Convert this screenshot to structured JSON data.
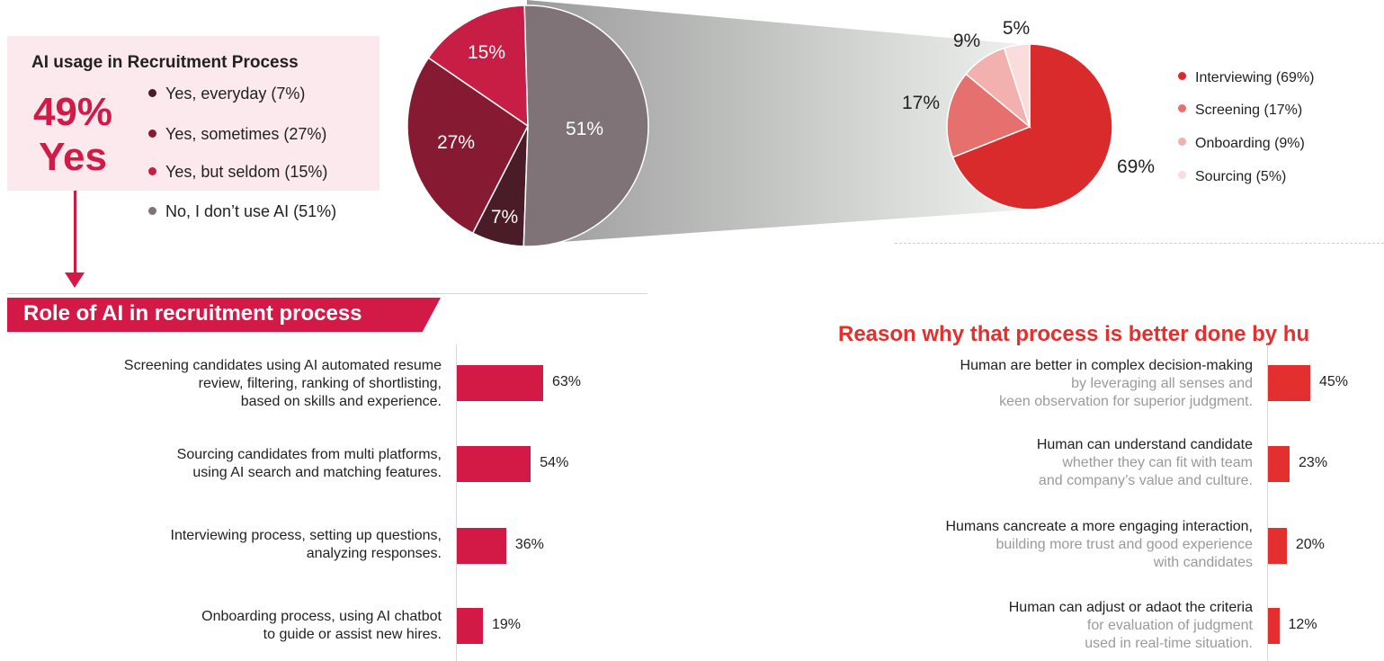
{
  "summary": {
    "title": "AI usage in Recruitment Process",
    "pct": "49%",
    "yes": "Yes",
    "legend": [
      {
        "label": "Yes, everyday (7%)",
        "color": "#4a1c28"
      },
      {
        "label": "Yes, sometimes (27%)",
        "color": "#861a32"
      },
      {
        "label": "Yes, but seldom (15%)",
        "color": "#c81e45"
      },
      {
        "label": "No, I don’t use AI (51%)",
        "color": "#7f7377"
      }
    ]
  },
  "role_title": "Role of AI in recruitment process",
  "reason_title": "Reason why that process is better done by hu",
  "colors": {
    "accent": "#d31a47",
    "reason_accent": "#e42f2f",
    "box_bg": "#fbe9ee"
  },
  "chart_data": [
    {
      "type": "pie",
      "labels": [
        "Yes, everyday",
        "Yes, sometimes",
        "Yes, but seldom",
        "No, I don’t use AI"
      ],
      "values": [
        7,
        27,
        15,
        51
      ],
      "value_labels": [
        "7%",
        "27%",
        "15%",
        "51%"
      ],
      "colors": [
        "#4a1c28",
        "#861a32",
        "#c81e45",
        "#7f7377"
      ]
    },
    {
      "type": "pie",
      "labels": [
        "Interviewing (69%)",
        "Screening (17%)",
        "Onboarding (9%)",
        "Sourcing (5%)"
      ],
      "values": [
        69,
        17,
        9,
        5
      ],
      "value_labels": [
        "69%",
        "17%",
        "9%",
        "5%"
      ],
      "colors": [
        "#d92b2b",
        "#e5706d",
        "#f2b1ae",
        "#f9dcdb"
      ],
      "legend_placement": "right"
    },
    {
      "type": "bar",
      "orientation": "horizontal",
      "title": "Role of AI in recruitment process",
      "categories": [
        "Screening candidates using AI automated resume review, filtering, ranking of shortlisting, based on skills and experience.",
        "Sourcing candidates from multi platforms, using AI search and matching features.",
        "Interviewing process, setting up questions, analyzing responses.",
        "Onboarding process, using AI chatbot to guide or assist new hires."
      ],
      "category_lines": [
        [
          "Screening candidates using AI automated resume",
          "review, filtering, ranking of shortlisting,",
          "based on skills and experience."
        ],
        [
          "Sourcing candidates from multi platforms,",
          "using AI search and matching features."
        ],
        [
          "Interviewing process, setting up questions,",
          "analyzing responses."
        ],
        [
          "Onboarding process, using AI chatbot",
          "to guide or assist new hires."
        ]
      ],
      "values": [
        63,
        54,
        36,
        19
      ],
      "value_labels": [
        "63%",
        "54%",
        "36%",
        "19%"
      ],
      "color": "#d31a47"
    },
    {
      "type": "bar",
      "orientation": "horizontal",
      "title": "Reason why that process is better done by hu",
      "categories": [
        "Human are better in complex decision-making by leveraging all senses and keen observation for superior judgment.",
        "Human can understand candidate whether they can fit with team and company’s value and culture.",
        "Humans cancreate a more engaging interaction, building more trust and good experience with candidates",
        "Human can adjust or adaot the criteria for evaluation of judgment used in real-time situation."
      ],
      "category_lines": [
        {
          "main": "Human are better in complex decision-making",
          "sub": [
            "by leveraging all senses and",
            "keen observation for superior judgment."
          ]
        },
        {
          "main": "Human can understand candidate",
          "sub": [
            "whether they can fit with team",
            "and company’s value and culture."
          ]
        },
        {
          "main": "Humans cancreate a more engaging interaction,",
          "sub": [
            "building more trust and good experience",
            "with candidates"
          ]
        },
        {
          "main": "Human can adjust or adaot the criteria",
          "sub": [
            "for evaluation of judgment",
            "used in real-time situation."
          ]
        }
      ],
      "values": [
        45,
        23,
        20,
        12
      ],
      "value_labels": [
        "45%",
        "23%",
        "20%",
        "12%"
      ],
      "color": "#e42f2f"
    }
  ]
}
